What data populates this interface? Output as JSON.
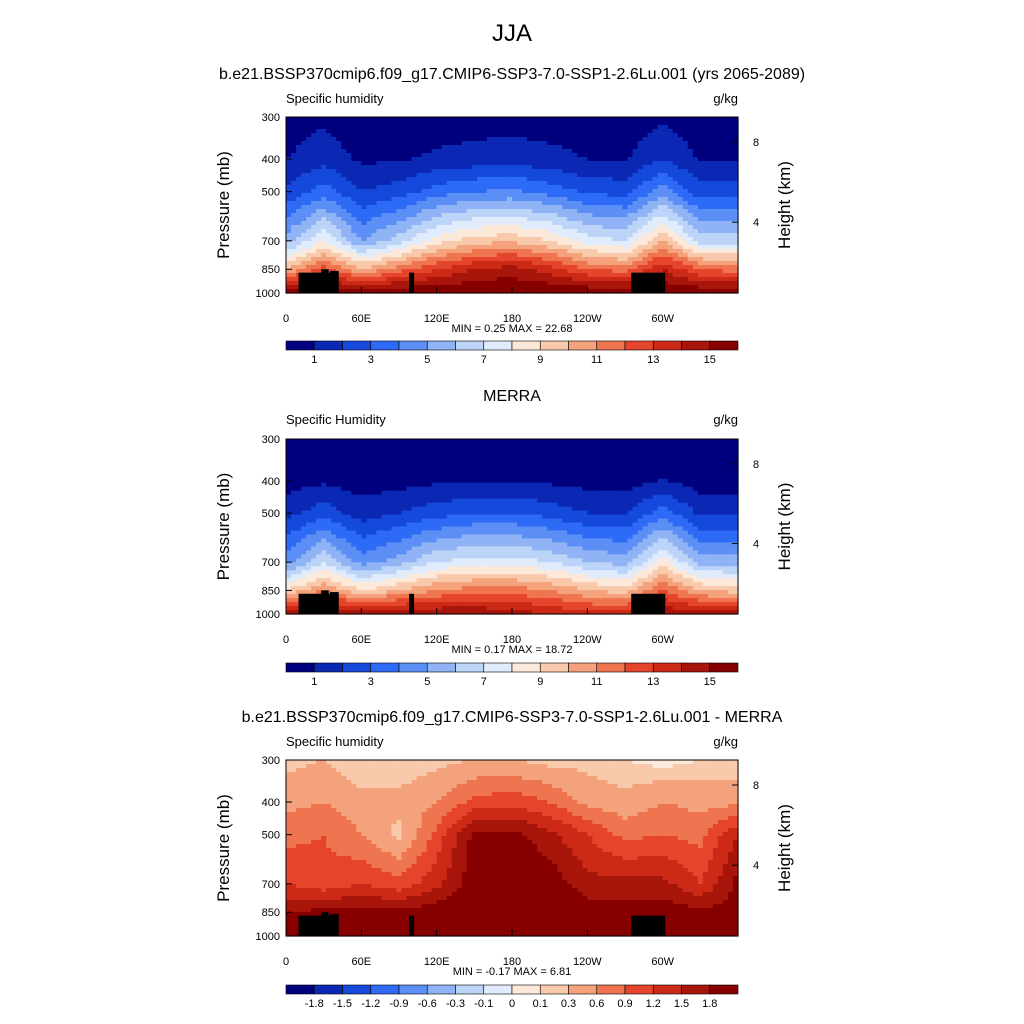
{
  "figure": {
    "season": "JJA"
  },
  "panels": [
    {
      "title": "b.e21.BSSP370cmip6.f09_g17.CMIP6-SSP3-7.0-SSP1-2.6Lu.001 (yrs 2065-2089)",
      "left_label": "Specific humidity",
      "right_label": "g/kg",
      "stats": "MIN =   0.25  MAX =  22.68",
      "colorbar_ticks": [
        "1",
        "3",
        "5",
        "7",
        "9",
        "11",
        "13",
        "15"
      ]
    },
    {
      "title": "MERRA",
      "left_label": "Specific Humidity",
      "right_label": "g/kg",
      "stats": "MIN =   0.17  MAX =  18.72",
      "colorbar_ticks": [
        "1",
        "3",
        "5",
        "7",
        "9",
        "11",
        "13",
        "15"
      ]
    },
    {
      "title": "b.e21.BSSP370cmip6.f09_g17.CMIP6-SSP3-7.0-SSP1-2.6Lu.001 - MERRA",
      "left_label": "Specific humidity",
      "right_label": "g/kg",
      "stats": "MIN =  -0.17  MAX =   6.81",
      "colorbar_ticks": [
        "-1.8",
        "-1.5",
        "-1.2",
        "-0.9",
        "-0.6",
        "-0.3",
        "-0.1",
        "0",
        "0.1",
        "0.3",
        "0.6",
        "0.9",
        "1.2",
        "1.5",
        "1.8"
      ]
    }
  ],
  "axes": {
    "ylabel": "Pressure (mb)",
    "ylabel_right": "Height (km)",
    "pressure_ticks": [
      "300",
      "400",
      "500",
      "700",
      "850",
      "1000"
    ],
    "height_ticks": [
      "8",
      "4"
    ],
    "lon_ticks": [
      "0",
      "60E",
      "120E",
      "180",
      "120W",
      "60W"
    ]
  },
  "colors": {
    "abs_scale": [
      "#00007f",
      "#0a28b4",
      "#1449dc",
      "#2d6af5",
      "#5c8ff5",
      "#8fb3f5",
      "#bcd4f7",
      "#e0ecfb",
      "#fde9d9",
      "#f9c9ab",
      "#f4a27c",
      "#ee7550",
      "#e5452b",
      "#cc2a16",
      "#a8150a",
      "#860000"
    ],
    "diff_scale": [
      "#00007f",
      "#0a28b4",
      "#1449dc",
      "#2d6af5",
      "#5c8ff5",
      "#8fb3f5",
      "#bcd4f7",
      "#e0ecfb",
      "#fde9d9",
      "#f9c9ab",
      "#f4a27c",
      "#ee7550",
      "#e5452b",
      "#cc2a16",
      "#a8150a",
      "#860000"
    ],
    "terrain": "#000000"
  },
  "chart_data": [
    {
      "type": "heatmap",
      "title": "b.e21.BSSP370cmip6.f09_g17.CMIP6-SSP3-7.0-SSP1-2.6Lu.001 (yrs 2065-2089)",
      "variable": "Specific humidity",
      "units": "g/kg",
      "xlabel": "",
      "ylabel": "Pressure (mb)",
      "x": [
        0,
        30,
        60,
        90,
        120,
        150,
        180,
        210,
        240,
        270,
        300,
        330,
        360
      ],
      "y": [
        300,
        400,
        500,
        700,
        850,
        1000
      ],
      "levels": [
        1,
        2,
        3,
        4,
        5,
        6,
        7,
        8,
        9,
        10,
        11,
        12,
        13,
        14,
        15
      ],
      "z": [
        [
          0.4,
          0.8,
          0.3,
          0.3,
          0.4,
          0.5,
          0.6,
          0.5,
          0.4,
          0.3,
          0.8,
          0.3,
          0.3
        ],
        [
          1.0,
          1.6,
          0.8,
          0.9,
          1.2,
          1.4,
          1.5,
          1.3,
          1.0,
          0.9,
          2.0,
          0.9,
          0.9
        ],
        [
          2.2,
          3.5,
          2.0,
          2.5,
          3.5,
          4.0,
          4.2,
          3.6,
          2.8,
          2.6,
          4.5,
          2.4,
          2.4
        ],
        [
          5.5,
          8.0,
          5.0,
          6.5,
          8.5,
          9.5,
          9.8,
          9.0,
          7.5,
          7.0,
          10.0,
          6.5,
          6.5
        ],
        [
          10.0,
          12.5,
          10.0,
          11.5,
          13.0,
          14.0,
          14.5,
          13.5,
          12.0,
          11.5,
          14.0,
          12.0,
          11.5
        ],
        [
          15.5,
          16.0,
          16.0,
          16.0,
          16.0,
          16.0,
          16.0,
          16.0,
          16.0,
          16.0,
          16.0,
          16.0,
          16.0
        ]
      ],
      "min": 0.25,
      "max": 22.68
    },
    {
      "type": "heatmap",
      "title": "MERRA",
      "variable": "Specific Humidity",
      "units": "g/kg",
      "xlabel": "",
      "ylabel": "Pressure (mb)",
      "x": [
        0,
        30,
        60,
        90,
        120,
        150,
        180,
        210,
        240,
        270,
        300,
        330,
        360
      ],
      "y": [
        300,
        400,
        500,
        700,
        850,
        1000
      ],
      "levels": [
        1,
        2,
        3,
        4,
        5,
        6,
        7,
        8,
        9,
        10,
        11,
        12,
        13,
        14,
        15
      ],
      "z": [
        [
          0.2,
          0.3,
          0.2,
          0.2,
          0.3,
          0.3,
          0.3,
          0.3,
          0.2,
          0.2,
          0.4,
          0.2,
          0.2
        ],
        [
          0.6,
          0.8,
          0.5,
          0.6,
          0.8,
          0.9,
          0.9,
          0.8,
          0.6,
          0.5,
          1.1,
          0.5,
          0.5
        ],
        [
          1.6,
          2.6,
          1.5,
          2.0,
          2.6,
          3.0,
          3.0,
          2.6,
          2.0,
          1.9,
          3.5,
          1.8,
          1.8
        ],
        [
          4.5,
          7.0,
          4.5,
          5.5,
          7.0,
          7.5,
          7.5,
          7.0,
          6.0,
          5.5,
          8.5,
          5.5,
          5.5
        ],
        [
          9.0,
          11.0,
          9.0,
          10.0,
          11.0,
          11.5,
          11.5,
          11.0,
          10.0,
          9.5,
          12.0,
          10.0,
          9.5
        ],
        [
          14.5,
          15.0,
          15.0,
          15.0,
          15.0,
          15.0,
          14.5,
          14.0,
          13.5,
          13.5,
          15.0,
          14.5,
          14.5
        ]
      ],
      "min": 0.17,
      "max": 18.72
    },
    {
      "type": "heatmap",
      "title": "b.e21.BSSP370cmip6.f09_g17.CMIP6-SSP3-7.0-SSP1-2.6Lu.001 - MERRA",
      "variable": "Specific humidity",
      "units": "g/kg",
      "xlabel": "",
      "ylabel": "Pressure (mb)",
      "x": [
        0,
        30,
        60,
        90,
        120,
        150,
        180,
        210,
        240,
        270,
        300,
        330,
        360
      ],
      "y": [
        300,
        400,
        500,
        700,
        850,
        1000
      ],
      "levels": [
        -1.8,
        -1.5,
        -1.2,
        -0.9,
        -0.6,
        -0.3,
        -0.1,
        0,
        0.1,
        0.3,
        0.6,
        0.9,
        1.2,
        1.5,
        1.8
      ],
      "z": [
        [
          0.2,
          0.3,
          0.1,
          0.1,
          0.2,
          0.3,
          0.3,
          0.2,
          0.2,
          0.1,
          0.0,
          0.1,
          0.1
        ],
        [
          0.5,
          0.6,
          0.4,
          0.4,
          0.6,
          1.0,
          1.1,
          0.9,
          0.5,
          0.4,
          0.6,
          0.5,
          0.5
        ],
        [
          0.8,
          0.9,
          0.6,
          0.2,
          1.0,
          1.9,
          1.9,
          1.6,
          1.2,
          0.8,
          0.9,
          0.8,
          1.5
        ],
        [
          1.2,
          1.0,
          1.2,
          1.0,
          1.4,
          2.0,
          2.2,
          2.0,
          1.6,
          1.6,
          1.6,
          1.2,
          1.9
        ],
        [
          1.8,
          1.9,
          1.9,
          1.9,
          2.0,
          2.2,
          2.5,
          2.2,
          2.0,
          2.0,
          2.0,
          1.9,
          1.9
        ],
        [
          2.0,
          2.0,
          2.0,
          2.0,
          2.0,
          2.0,
          2.0,
          2.0,
          2.0,
          2.0,
          2.0,
          2.0,
          2.0
        ]
      ],
      "min": -0.17,
      "max": 6.81
    }
  ]
}
